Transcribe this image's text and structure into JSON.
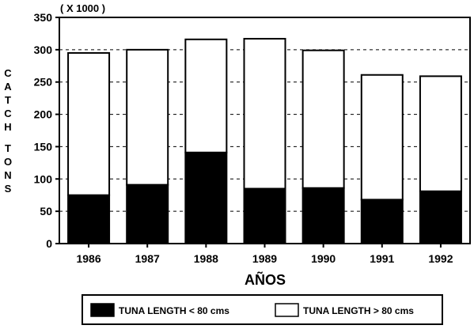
{
  "chart_data": {
    "type": "bar",
    "stacked": true,
    "categories": [
      "1986",
      "1987",
      "1988",
      "1989",
      "1990",
      "1991",
      "1992"
    ],
    "series": [
      {
        "name": "TUNA LENGTH < 80 cms",
        "values": [
          75,
          91,
          141,
          85,
          86,
          68,
          81
        ],
        "color": "#000000"
      },
      {
        "name": "TUNA LENGTH > 80 cms",
        "values": [
          220,
          209,
          175,
          232,
          213,
          193,
          178
        ],
        "color": "#ffffff"
      }
    ],
    "totals": [
      295,
      300,
      316,
      317,
      299,
      261,
      259
    ],
    "xlabel": "AÑOS",
    "ylabel_letters": [
      "C",
      "A",
      "T",
      "C",
      "H",
      "T",
      "O",
      "N",
      "S"
    ],
    "unit_note": "( X 1000 )",
    "ylim": [
      0,
      350
    ],
    "yticks": [
      0,
      50,
      100,
      150,
      200,
      250,
      300,
      350
    ],
    "grid": true,
    "grid_style": "dashed",
    "legend_position": "bottom"
  }
}
